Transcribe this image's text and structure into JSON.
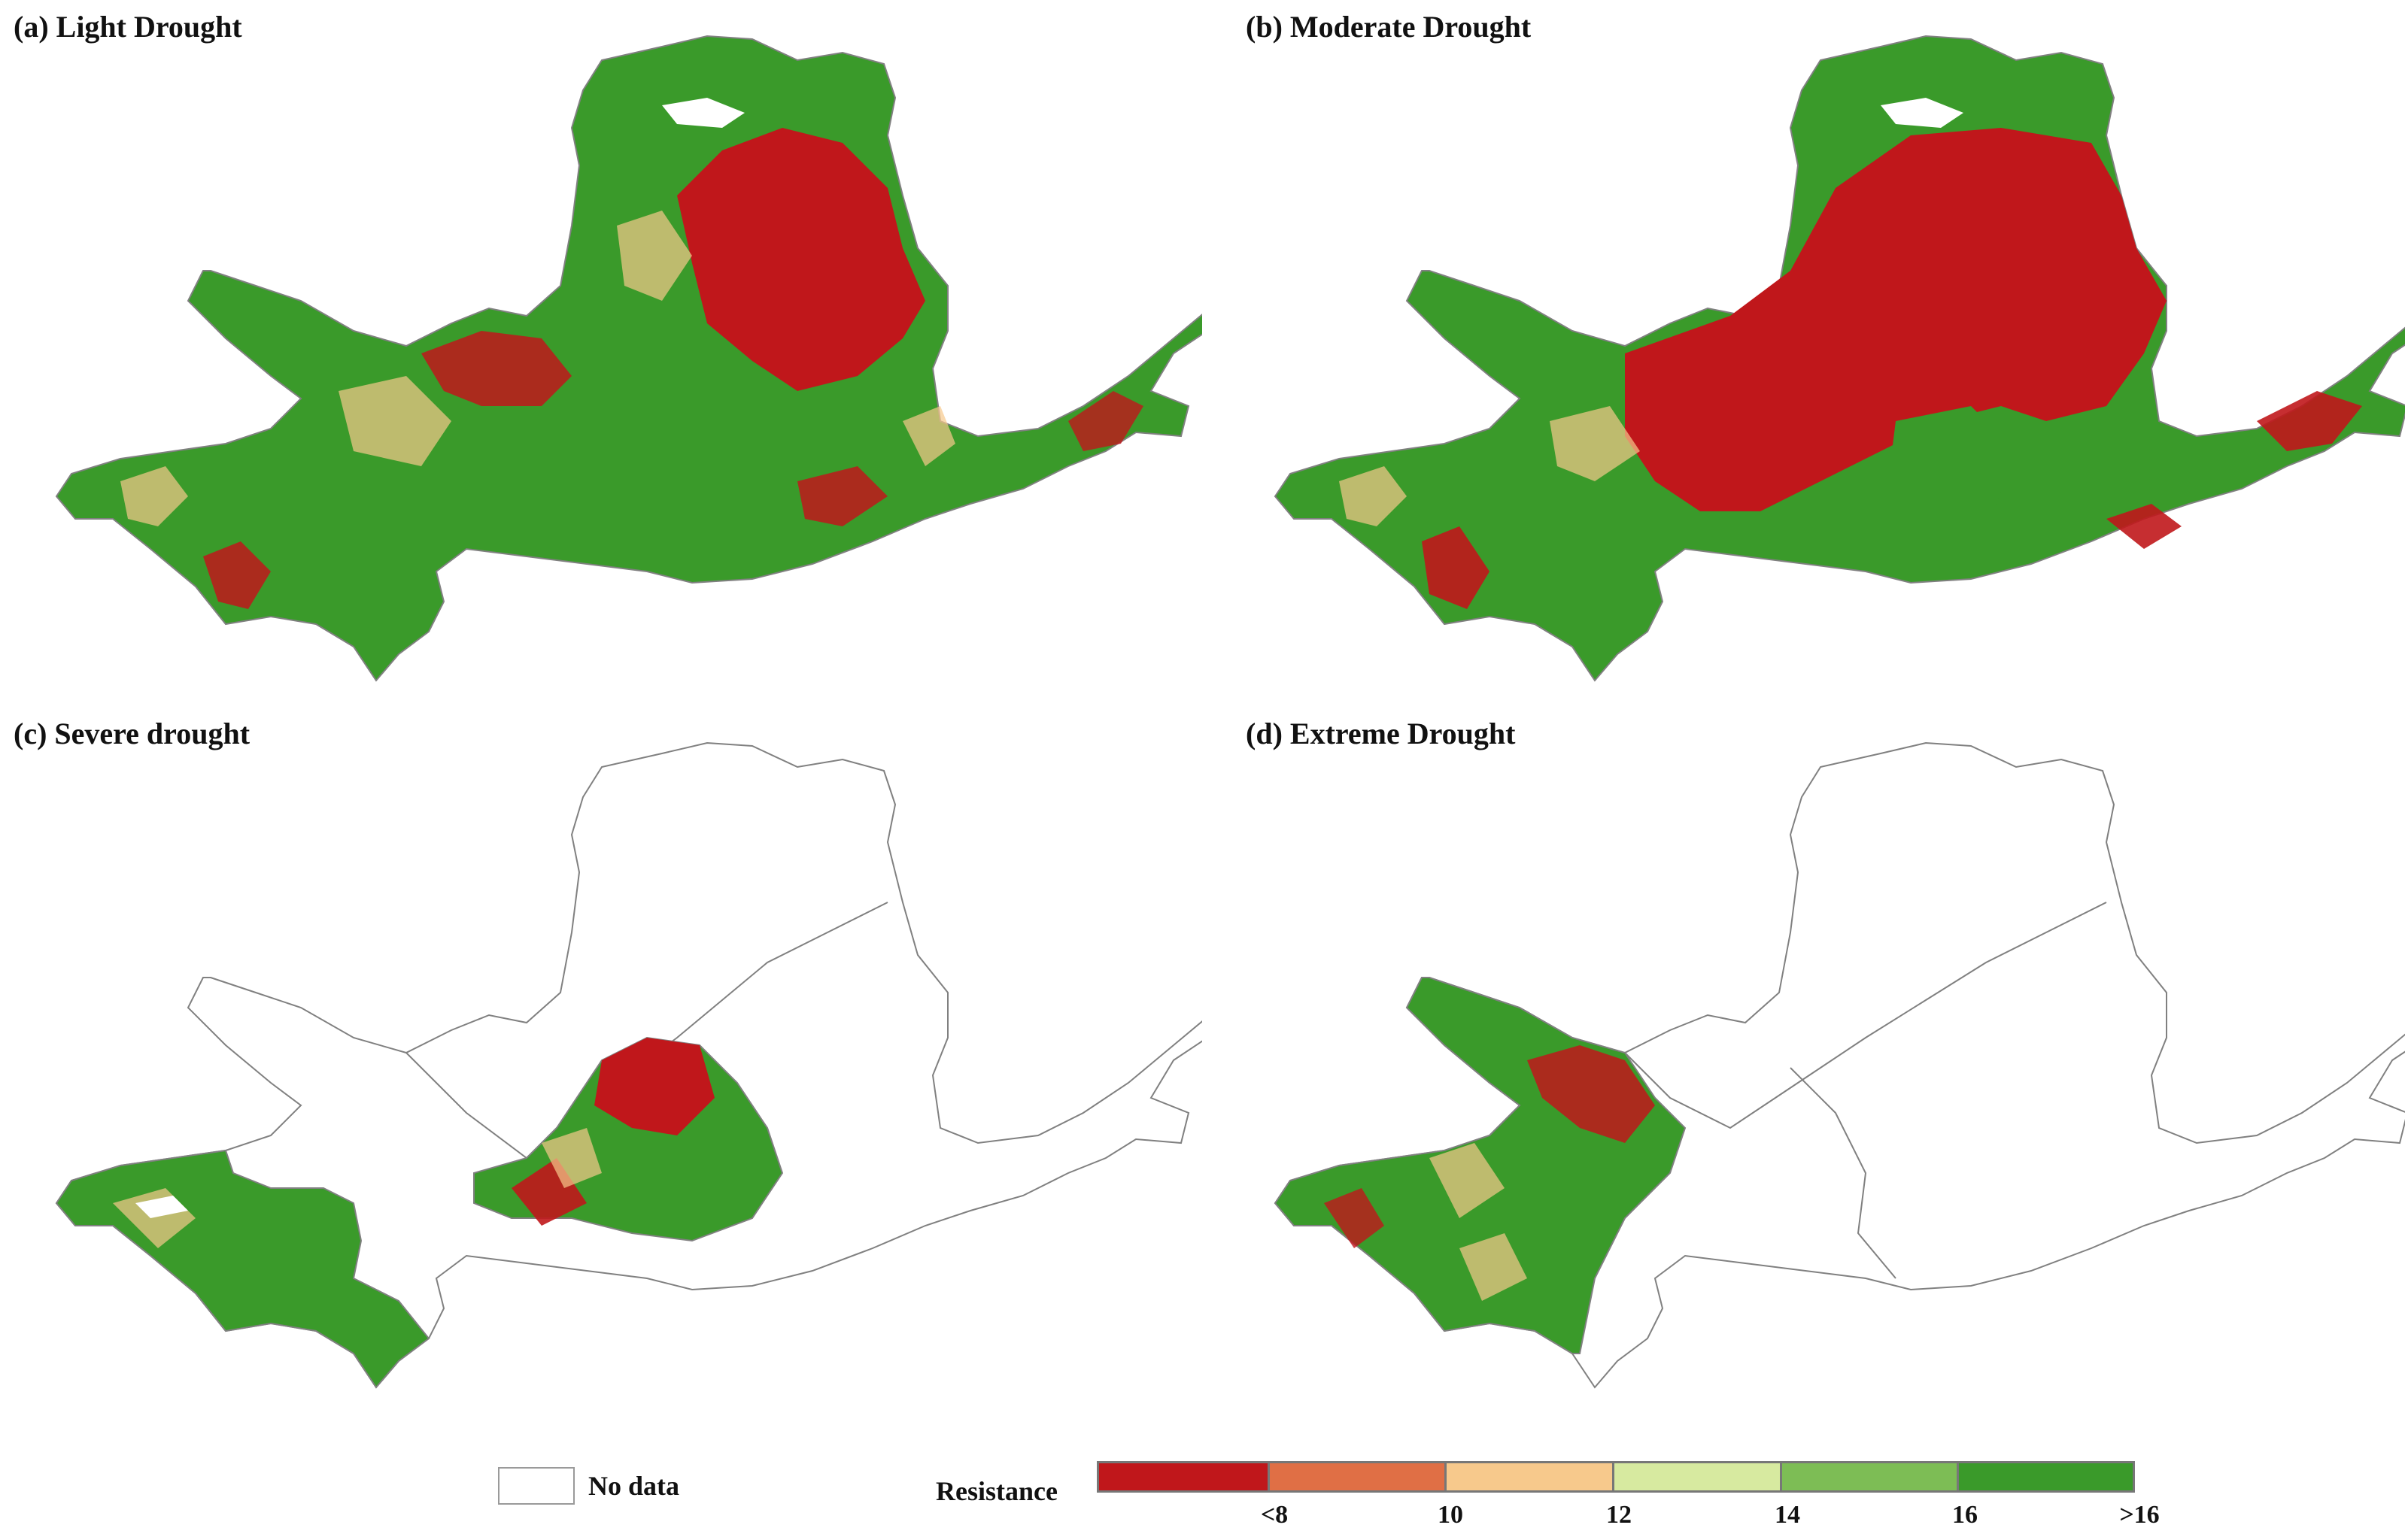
{
  "panels": [
    {
      "id": "a",
      "title": "(a) Light Drought"
    },
    {
      "id": "b",
      "title": "(b) Moderate Drought"
    },
    {
      "id": "c",
      "title": "(c) Severe drought"
    },
    {
      "id": "d",
      "title": "(d) Extreme Drought"
    }
  ],
  "legend": {
    "no_data_label": "No data",
    "title": "Resistance",
    "classes": [
      {
        "color": "#c0171b"
      },
      {
        "color": "#e06f45"
      },
      {
        "color": "#f7c98c"
      },
      {
        "color": "#d7eaa0"
      },
      {
        "color": "#7dbd55"
      },
      {
        "color": "#3a9a2a"
      }
    ],
    "ticks": [
      "<8",
      "10",
      "12",
      "14",
      "16",
      ">16"
    ]
  },
  "colors": {
    "boundary": "#808080",
    "background": "#ffffff"
  }
}
